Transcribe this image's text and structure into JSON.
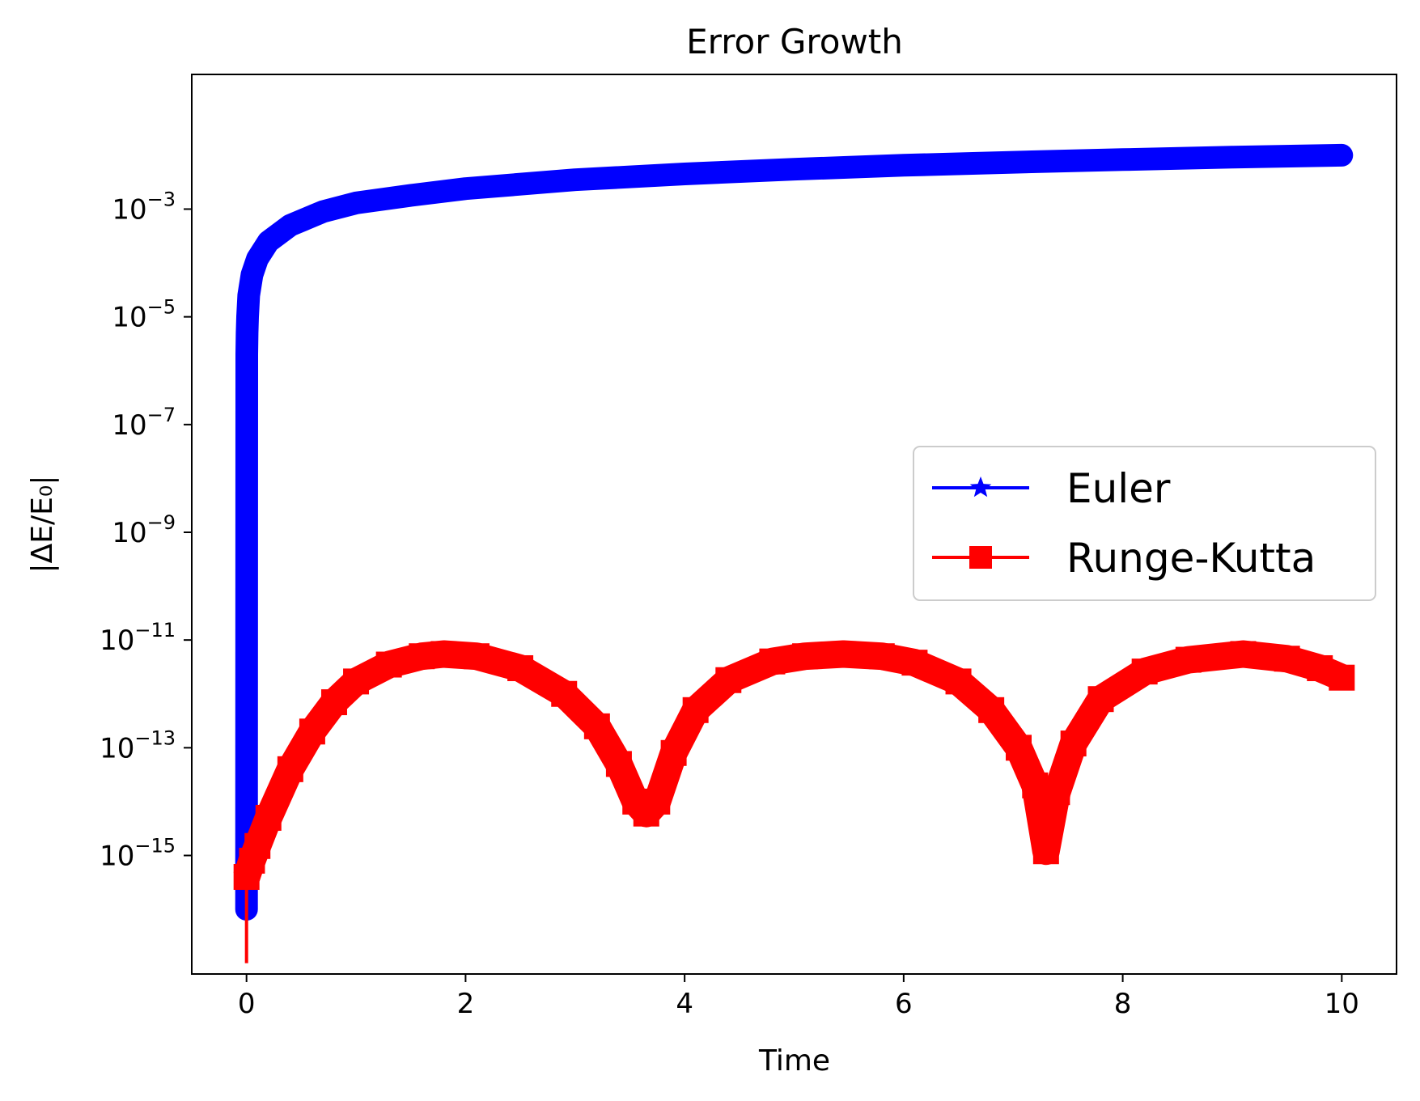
{
  "chart_data": {
    "type": "line",
    "title": "Error Growth",
    "xlabel": "Time",
    "ylabel": "|ΔE/E₀|",
    "yscale": "log",
    "xlim": [
      -0.5,
      10.5
    ],
    "ylim_exponent": [
      -17.2,
      -0.5
    ],
    "x_ticks": [
      0,
      2,
      4,
      6,
      8,
      10
    ],
    "y_tick_exponents": [
      -15,
      -13,
      -11,
      -9,
      -7,
      -5,
      -3
    ],
    "grid": false,
    "legend_location": "center-right",
    "series": [
      {
        "name": "Euler",
        "color": "#0000ff",
        "marker": "star",
        "x": [
          0.0,
          0.002,
          0.005,
          0.01,
          0.02,
          0.05,
          0.1,
          0.2,
          0.4,
          0.7,
          1.0,
          1.5,
          2.0,
          3.0,
          4.0,
          5.0,
          6.0,
          7.0,
          8.0,
          9.0,
          10.0
        ],
        "y": [
          1e-16,
          2e-06,
          5e-06,
          1e-05,
          2.5e-05,
          6e-05,
          0.00012,
          0.00025,
          0.0005,
          0.0009,
          0.0013,
          0.0018,
          0.0024,
          0.0035,
          0.0045,
          0.0055,
          0.0065,
          0.0074,
          0.0083,
          0.0092,
          0.01
        ]
      },
      {
        "name": "Runge-Kutta",
        "color": "#ff0000",
        "marker": "square",
        "x": [
          0.0,
          0.05,
          0.1,
          0.2,
          0.4,
          0.6,
          0.8,
          1.0,
          1.3,
          1.6,
          1.8,
          2.1,
          2.5,
          2.9,
          3.2,
          3.4,
          3.55,
          3.65,
          3.75,
          3.9,
          4.1,
          4.4,
          4.8,
          5.1,
          5.45,
          5.8,
          6.1,
          6.5,
          6.8,
          7.05,
          7.2,
          7.3,
          7.4,
          7.55,
          7.8,
          8.2,
          8.6,
          9.1,
          9.5,
          9.8,
          10.0
        ],
        "y": [
          4e-16,
          8e-16,
          1.5e-15,
          5e-15,
          4e-14,
          2e-13,
          7e-13,
          1.7e-12,
          3.5e-12,
          5e-12,
          5.5e-12,
          5e-12,
          3e-12,
          1e-12,
          2.5e-13,
          5e-14,
          1e-14,
          6e-15,
          1e-14,
          8e-14,
          5e-13,
          1.8e-12,
          4e-12,
          5e-12,
          5.5e-12,
          5e-12,
          3.8e-12,
          1.7e-12,
          5e-13,
          1e-13,
          2e-14,
          1.2e-15,
          1.5e-14,
          1.2e-13,
          8e-13,
          2.6e-12,
          4.3e-12,
          5.5e-12,
          4.5e-12,
          3e-12,
          2e-12
        ]
      }
    ]
  }
}
